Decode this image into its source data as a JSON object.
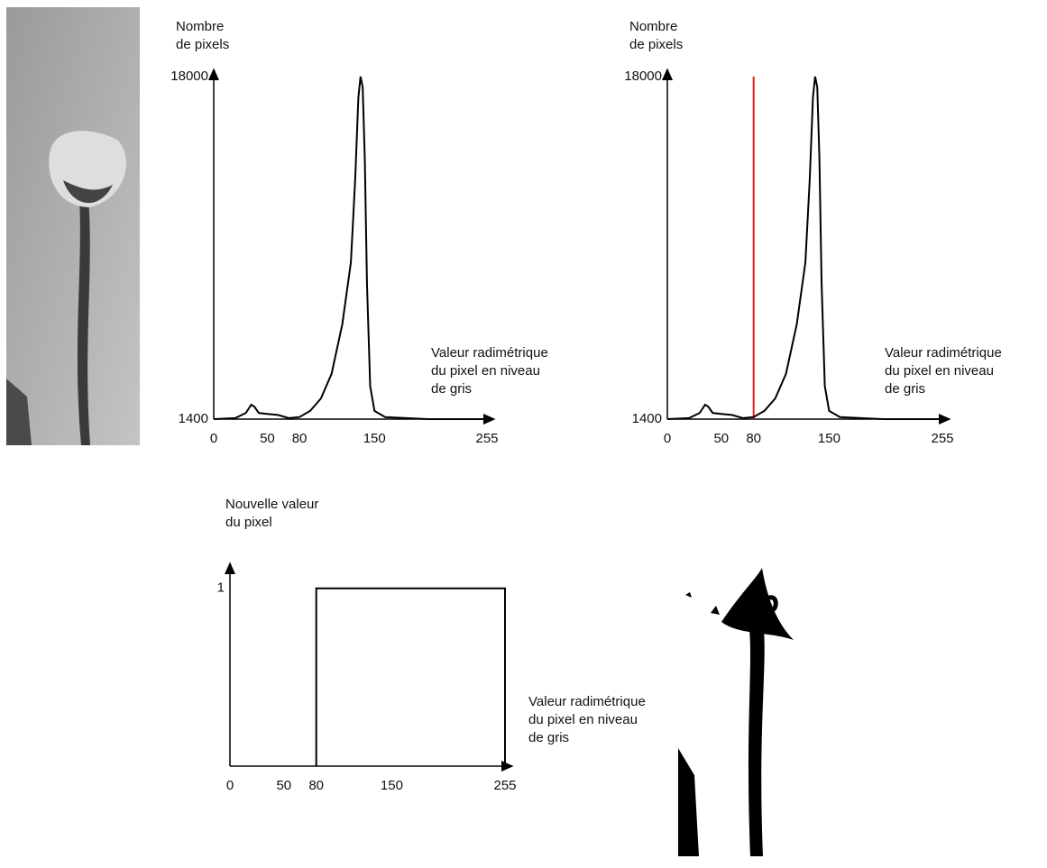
{
  "chart_data": [
    {
      "type": "line",
      "y_label": [
        "Nombre",
        "de pixels"
      ],
      "x_label": [
        "Valeur radimétrique",
        "du pixel en niveau",
        "de gris"
      ],
      "x": [
        0,
        20,
        30,
        35,
        38,
        42,
        50,
        60,
        70,
        80,
        90,
        100,
        110,
        120,
        128,
        132,
        135,
        137,
        139,
        141,
        143,
        146,
        150,
        160,
        200,
        255
      ],
      "values": [
        1400,
        1450,
        1700,
        2100,
        2000,
        1700,
        1650,
        1600,
        1450,
        1500,
        1800,
        2400,
        3600,
        6000,
        9000,
        13000,
        17000,
        18000,
        17500,
        14000,
        8000,
        3000,
        1800,
        1500,
        1400,
        1400
      ],
      "color": "#000000",
      "xlim": [
        0,
        255
      ],
      "xticks": [
        0,
        50,
        80,
        150,
        255
      ],
      "ylim": [
        1400,
        18000
      ],
      "yticks": [
        1400,
        18000
      ]
    },
    {
      "type": "line",
      "y_label": [
        "Nombre",
        "de pixels"
      ],
      "x_label": [
        "Valeur radimétrique",
        "du pixel en niveau",
        "de gris"
      ],
      "x": [
        0,
        20,
        30,
        35,
        38,
        42,
        50,
        60,
        70,
        80,
        90,
        100,
        110,
        120,
        128,
        132,
        135,
        137,
        139,
        141,
        143,
        146,
        150,
        160,
        200,
        255
      ],
      "values": [
        1400,
        1450,
        1700,
        2100,
        2000,
        1700,
        1650,
        1600,
        1450,
        1500,
        1800,
        2400,
        3600,
        6000,
        9000,
        13000,
        17000,
        18000,
        17500,
        14000,
        8000,
        3000,
        1800,
        1500,
        1400,
        1400
      ],
      "color": "#000000",
      "threshold": 80,
      "threshold_color": "#e0201b",
      "xlim": [
        0,
        255
      ],
      "xticks": [
        0,
        50,
        80,
        150,
        255
      ],
      "ylim": [
        1400,
        18000
      ],
      "yticks": [
        1400,
        18000
      ]
    },
    {
      "type": "line",
      "y_label": [
        "Nouvelle valeur",
        "du pixel"
      ],
      "x_label": [
        "Valeur radimétrique",
        "du pixel en niveau",
        "de gris"
      ],
      "x": [
        80,
        80,
        255,
        255
      ],
      "values": [
        0,
        1,
        1,
        0
      ],
      "color": "#000000",
      "xlim": [
        0,
        255
      ],
      "xticks": [
        0,
        50,
        80,
        150,
        255
      ],
      "ylim": [
        0,
        1.1
      ],
      "yticks": [
        1
      ]
    }
  ]
}
